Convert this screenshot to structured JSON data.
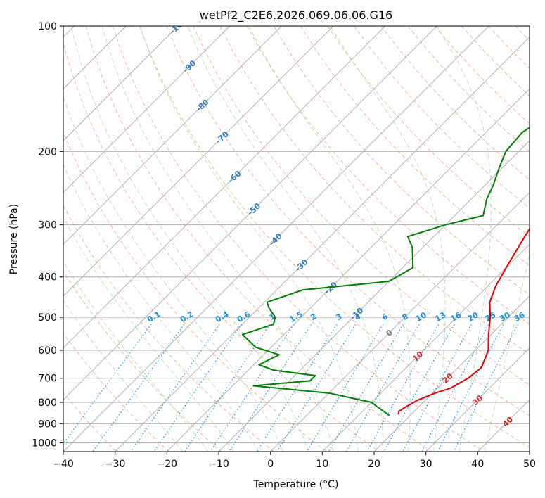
{
  "chart_data": {
    "type": "line",
    "title": "wetPf2_C2E6.2026.069.06.06.G16",
    "xlabel": "Temperature (°C)",
    "ylabel": "Pressure (hPa)",
    "xlim": [
      -40,
      50
    ],
    "ylim": [
      1050,
      100
    ],
    "x_ticks": [
      -40,
      -30,
      -20,
      -10,
      0,
      10,
      20,
      30,
      40,
      50
    ],
    "y_ticks": [
      100,
      200,
      300,
      400,
      500,
      600,
      700,
      800,
      900,
      1000
    ],
    "grid": true,
    "series": [
      {
        "name": "Temperature",
        "color": "#e00000",
        "points": [
          [
            100,
            11.5
          ],
          [
            120,
            10.5
          ],
          [
            140,
            10.0
          ],
          [
            160,
            10.5
          ],
          [
            180,
            10.5
          ],
          [
            190,
            8.5
          ],
          [
            200,
            7
          ],
          [
            220,
            7
          ],
          [
            240,
            5.5
          ],
          [
            280,
            5.8
          ],
          [
            330,
            8.0
          ],
          [
            380,
            10.0
          ],
          [
            420,
            11.5
          ],
          [
            460,
            13.5
          ],
          [
            500,
            16.5
          ],
          [
            550,
            19.5
          ],
          [
            600,
            22.5
          ],
          [
            660,
            24.5
          ],
          [
            700,
            24.0
          ],
          [
            740,
            22.5
          ],
          [
            760,
            20.5
          ],
          [
            790,
            18.5
          ],
          [
            820,
            17.5
          ],
          [
            840,
            17.0
          ],
          [
            855,
            17.5
          ]
        ]
      },
      {
        "name": "Dewpoint",
        "color": "#008000",
        "points": [
          [
            100,
            1.0
          ],
          [
            120,
            -4.0
          ],
          [
            140,
            -6.0
          ],
          [
            150,
            -8.0
          ],
          [
            160,
            -13.0
          ],
          [
            170,
            -12.0
          ],
          [
            180,
            -13.0
          ],
          [
            200,
            -12.5
          ],
          [
            220,
            -10.5
          ],
          [
            240,
            -8.5
          ],
          [
            260,
            -7.0
          ],
          [
            285,
            -4.5
          ],
          [
            300,
            -10.0
          ],
          [
            320,
            -15.0
          ],
          [
            340,
            -12.0
          ],
          [
            380,
            -8.0
          ],
          [
            410,
            -10.0
          ],
          [
            430,
            -25.0
          ],
          [
            460,
            -29.5
          ],
          [
            475,
            -28.0
          ],
          [
            500,
            -25.0
          ],
          [
            520,
            -24.0
          ],
          [
            550,
            -28.0
          ],
          [
            590,
            -23.0
          ],
          [
            615,
            -17.0
          ],
          [
            650,
            -19.0
          ],
          [
            670,
            -15.0
          ],
          [
            690,
            -6.0
          ],
          [
            710,
            -6.0
          ],
          [
            730,
            -16.0
          ],
          [
            760,
            0.0
          ],
          [
            800,
            10.0
          ],
          [
            820,
            12.0
          ],
          [
            840,
            14.0
          ],
          [
            860,
            16.0
          ]
        ]
      }
    ],
    "dry_adiabats_K": [
      230,
      240,
      250,
      260,
      270,
      280,
      290,
      300,
      310,
      320,
      330,
      340,
      350,
      360,
      370,
      380,
      390,
      400,
      410,
      420,
      430,
      440,
      450,
      460,
      470
    ],
    "moist_adiabats_C": [
      -20,
      -15,
      -10,
      -5,
      0,
      5,
      10,
      15,
      20,
      25,
      30,
      35,
      40
    ],
    "isotherms_C": [
      -150,
      -140,
      -130,
      -120,
      -110,
      -100,
      -90,
      -80,
      -70,
      -60,
      -50,
      -40,
      -30,
      -20,
      -10,
      0,
      10,
      20,
      30,
      40,
      50
    ],
    "mixing_ratios_gkg": [
      0.1,
      0.2,
      0.4,
      0.6,
      1,
      1.5,
      2,
      3,
      4,
      6,
      8,
      10,
      13,
      16,
      20,
      25,
      30,
      36
    ],
    "mixing_ratio_labels": [
      "0.1",
      "0.2",
      "0.4",
      "0.6",
      "1",
      "1.5",
      "2",
      "3",
      "4",
      "6",
      "8",
      "10",
      "13",
      "16",
      "20",
      "25",
      "30",
      "36"
    ],
    "isotherm_labels": [
      {
        "text": "-100",
        "temp": -100,
        "pressure": 100
      },
      {
        "text": "-90",
        "temp": -90,
        "pressure": 125
      },
      {
        "text": "-80",
        "temp": -80,
        "pressure": 155
      },
      {
        "text": "-70",
        "temp": -70,
        "pressure": 185
      },
      {
        "text": "-60",
        "temp": -60,
        "pressure": 230
      },
      {
        "text": "-50",
        "temp": -50,
        "pressure": 275
      },
      {
        "text": "-40",
        "temp": -40,
        "pressure": 325
      },
      {
        "text": "-30",
        "temp": -30,
        "pressure": 375
      },
      {
        "text": "-20",
        "temp": -20,
        "pressure": 425
      },
      {
        "text": "-10",
        "temp": -10,
        "pressure": 490
      },
      {
        "text": "0",
        "temp": 0,
        "pressure": 545
      },
      {
        "text": "10",
        "temp": 10,
        "pressure": 620
      },
      {
        "text": "20",
        "temp": 20,
        "pressure": 700
      },
      {
        "text": "30",
        "temp": 30,
        "pressure": 790
      },
      {
        "text": "40",
        "temp": 40,
        "pressure": 890
      }
    ],
    "colors": {
      "isotherm": "#b0b0b0",
      "dry_adiabat": "#f4a582",
      "moist_adiabat": "#a6d9a6",
      "mixing_ratio": "#1f8fe0",
      "label_cold": "#2a7ab8",
      "label_zero": "#808080",
      "label_warm": "#d62728"
    }
  }
}
